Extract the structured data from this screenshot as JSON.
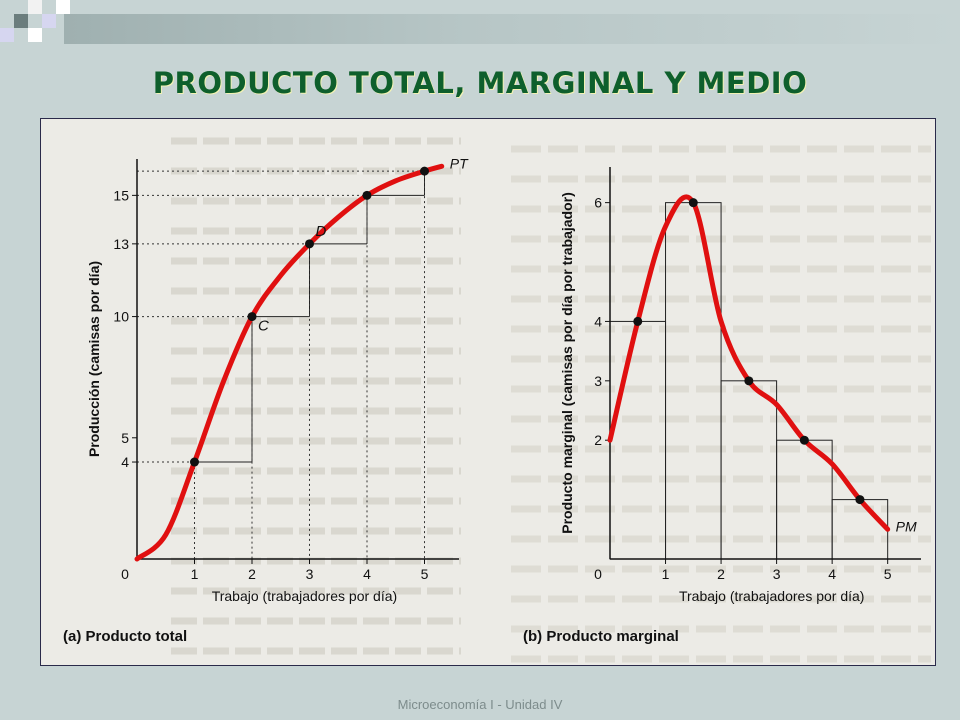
{
  "slide": {
    "title": "PRODUCTO TOTAL, MARGINAL Y MEDIO",
    "footer": "Microeconomía I - Unidad IV"
  },
  "colors": {
    "background": "#c7d4d4",
    "title": "#0e5f2c",
    "curve": "#e01010",
    "paper": "#ecebe6"
  },
  "chart_data": [
    {
      "type": "line",
      "caption": "(a) Producto total",
      "xlabel": "Trabajo (trabajadores por día)",
      "ylabel": "Producción (camisas por día)",
      "x_ticks": [
        "0",
        "1",
        "2",
        "3",
        "4",
        "5"
      ],
      "y_ticks": [
        "4",
        "5",
        "10",
        "13",
        "15"
      ],
      "xlim": [
        0,
        5.6
      ],
      "ylim": [
        0,
        16.5
      ],
      "series": [
        {
          "name": "PT",
          "x": [
            0,
            0.5,
            1,
            1.5,
            2,
            2.5,
            3,
            3.5,
            4,
            4.5,
            5,
            5.3
          ],
          "y": [
            0,
            1,
            4,
            7.3,
            10,
            11.7,
            13,
            14.1,
            15,
            15.6,
            16,
            16.2
          ]
        }
      ],
      "points": [
        {
          "x": 1,
          "y": 4
        },
        {
          "x": 2,
          "y": 10
        },
        {
          "x": 3,
          "y": 13
        },
        {
          "x": 4,
          "y": 15
        },
        {
          "x": 5,
          "y": 16
        }
      ],
      "point_labels": [
        {
          "label": "C",
          "x": 2,
          "y": 10
        },
        {
          "label": "D",
          "x": 3,
          "y": 13
        }
      ],
      "steps": [
        {
          "x0": 1,
          "x1": 2,
          "y0": 4,
          "y1": 10
        },
        {
          "x0": 2,
          "x1": 3,
          "y0": 10,
          "y1": 13
        },
        {
          "x0": 3,
          "x1": 4,
          "y0": 13,
          "y1": 15
        },
        {
          "x0": 4,
          "x1": 5,
          "y0": 15,
          "y1": 16
        }
      ]
    },
    {
      "type": "line",
      "caption": "(b) Producto marginal",
      "xlabel": "Trabajo (trabajadores por día)",
      "ylabel": "Producto marginal (camisas por día por trabajador)",
      "x_ticks": [
        "0",
        "1",
        "2",
        "3",
        "4",
        "5"
      ],
      "y_ticks": [
        "2",
        "3",
        "4",
        "6"
      ],
      "xlim": [
        0,
        5.6
      ],
      "ylim": [
        0,
        6.6
      ],
      "series": [
        {
          "name": "PM",
          "x": [
            0,
            0.5,
            1,
            1.5,
            2,
            2.5,
            3,
            3.5,
            4,
            4.5,
            5
          ],
          "y": [
            2,
            4,
            5.6,
            6,
            4,
            3,
            2.6,
            2,
            1.6,
            1,
            0.5
          ]
        }
      ],
      "points": [
        {
          "x": 0.5,
          "y": 4
        },
        {
          "x": 1.5,
          "y": 6
        },
        {
          "x": 2.5,
          "y": 3
        },
        {
          "x": 3.5,
          "y": 2
        },
        {
          "x": 4.5,
          "y": 1
        }
      ],
      "bars": [
        {
          "x0": 0,
          "x1": 1,
          "y": 4
        },
        {
          "x0": 1,
          "x1": 2,
          "y": 6
        },
        {
          "x0": 2,
          "x1": 3,
          "y": 3
        },
        {
          "x0": 3,
          "x1": 4,
          "y": 2
        },
        {
          "x0": 4,
          "x1": 5,
          "y": 1
        }
      ]
    }
  ]
}
